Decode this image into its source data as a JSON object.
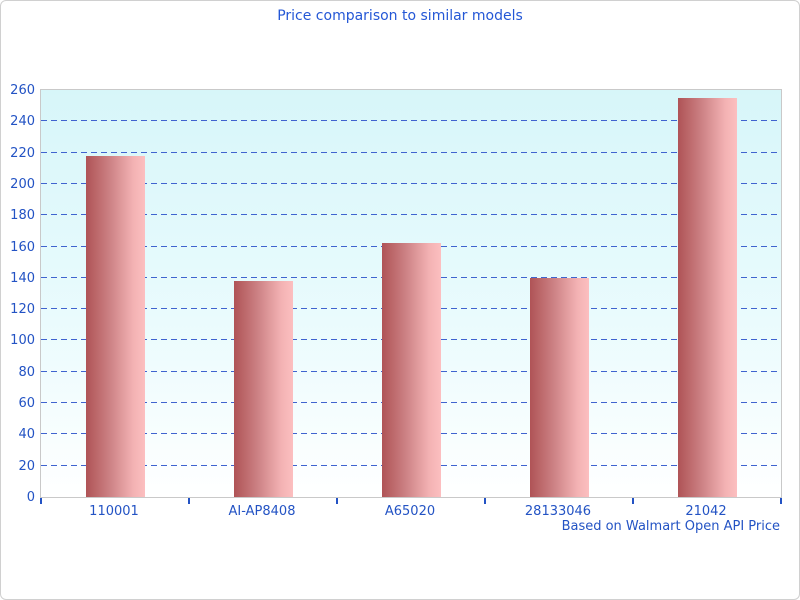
{
  "chart_data": {
    "type": "bar",
    "title": "Price comparison to similar models",
    "categories": [
      "110001",
      "AI-AP8408",
      "A65020",
      "28133046",
      "21042"
    ],
    "values": [
      218,
      138,
      162,
      140,
      255
    ],
    "xlabel": "",
    "ylabel": "",
    "ylim": [
      0,
      260
    ],
    "ytick_step": 20,
    "yticks": [
      0,
      20,
      40,
      60,
      80,
      100,
      120,
      140,
      160,
      180,
      200,
      220,
      240,
      260
    ],
    "grid": "horizontal-dashed",
    "legend_position": "none",
    "footnote": "Based on Walmart Open API Price",
    "colors": {
      "title_text": "#2457d6",
      "axis_label_text": "#2353c4",
      "gridline": "#3f63cf",
      "tick": "#2353c4",
      "bar_gradient_start": "#af5356",
      "bar_gradient_end": "#fcbfc0",
      "plot_bg_top": "#d7f6f9",
      "plot_bg_bottom": "#ffffff",
      "plot_border": "#c9c9c9",
      "canvas_border": "#d0d0d0",
      "canvas_bg": "#ffffff"
    }
  }
}
